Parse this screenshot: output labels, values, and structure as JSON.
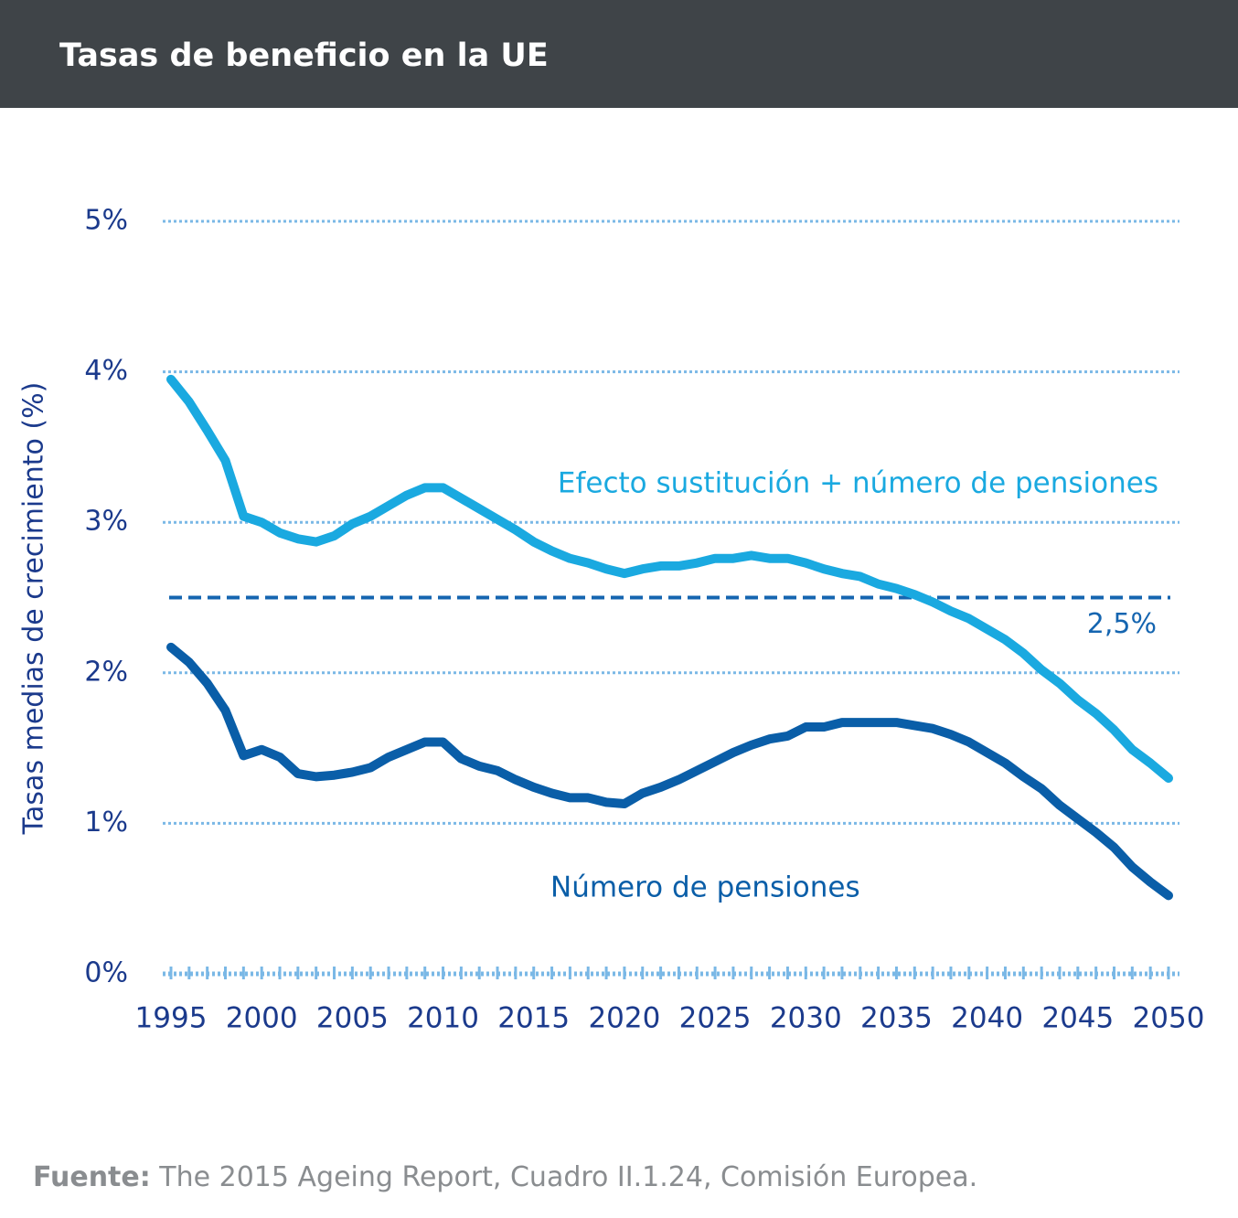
{
  "chart_data": {
    "type": "line",
    "title": "Tasas de beneficio en la UE",
    "ylabel": "Tasas medias de crecimiento (%)",
    "source_label": "Fuente:",
    "source": "The 2015 Ageing Report, Cuadro II.1.24, Comisión Europea.",
    "x": [
      1995,
      1996,
      1997,
      1998,
      1999,
      2000,
      2001,
      2002,
      2003,
      2004,
      2005,
      2006,
      2007,
      2008,
      2009,
      2010,
      2011,
      2012,
      2013,
      2014,
      2015,
      2016,
      2017,
      2018,
      2019,
      2020,
      2021,
      2022,
      2023,
      2024,
      2025,
      2026,
      2027,
      2028,
      2029,
      2030,
      2031,
      2032,
      2033,
      2034,
      2035,
      2036,
      2037,
      2038,
      2039,
      2040,
      2041,
      2042,
      2043,
      2044,
      2045,
      2046,
      2047,
      2048,
      2049,
      2050
    ],
    "series": [
      {
        "name": "Efecto sustitución + número de pensiones",
        "color": "#1aa9e0",
        "values": [
          3.95,
          3.8,
          3.61,
          3.41,
          3.04,
          3.0,
          2.93,
          2.89,
          2.87,
          2.91,
          2.99,
          3.04,
          3.11,
          3.18,
          3.23,
          3.23,
          3.16,
          3.09,
          3.02,
          2.95,
          2.87,
          2.81,
          2.76,
          2.73,
          2.69,
          2.66,
          2.69,
          2.71,
          2.71,
          2.73,
          2.76,
          2.76,
          2.78,
          2.76,
          2.76,
          2.73,
          2.69,
          2.66,
          2.64,
          2.59,
          2.56,
          2.52,
          2.47,
          2.41,
          2.36,
          2.29,
          2.22,
          2.13,
          2.02,
          1.93,
          1.82,
          1.73,
          1.62,
          1.49,
          1.4,
          1.3
        ]
      },
      {
        "name": "Número de pensiones",
        "color": "#0a5ea8",
        "values": [
          2.17,
          2.07,
          1.93,
          1.75,
          1.45,
          1.49,
          1.44,
          1.33,
          1.31,
          1.32,
          1.34,
          1.37,
          1.44,
          1.49,
          1.54,
          1.54,
          1.43,
          1.38,
          1.35,
          1.29,
          1.24,
          1.2,
          1.17,
          1.17,
          1.14,
          1.13,
          1.2,
          1.24,
          1.29,
          1.35,
          1.41,
          1.47,
          1.52,
          1.56,
          1.58,
          1.64,
          1.64,
          1.67,
          1.67,
          1.67,
          1.67,
          1.65,
          1.63,
          1.59,
          1.54,
          1.47,
          1.4,
          1.31,
          1.23,
          1.12,
          1.03,
          0.94,
          0.84,
          0.71,
          0.61,
          0.52
        ]
      }
    ],
    "reference": {
      "value": 2.5,
      "label": "2,5%",
      "color": "#1565b0"
    },
    "xlim": [
      1995,
      2050
    ],
    "xticks": [
      1995,
      2000,
      2005,
      2010,
      2015,
      2020,
      2025,
      2030,
      2035,
      2040,
      2045,
      2050
    ],
    "ylim": [
      0,
      5
    ],
    "yticks": [
      {
        "value": 0,
        "label": "0%"
      },
      {
        "value": 1,
        "label": "1%"
      },
      {
        "value": 2,
        "label": "2%"
      },
      {
        "value": 3,
        "label": "3%"
      },
      {
        "value": 4,
        "label": "4%"
      },
      {
        "value": 5,
        "label": "5%"
      }
    ],
    "grid": true
  }
}
